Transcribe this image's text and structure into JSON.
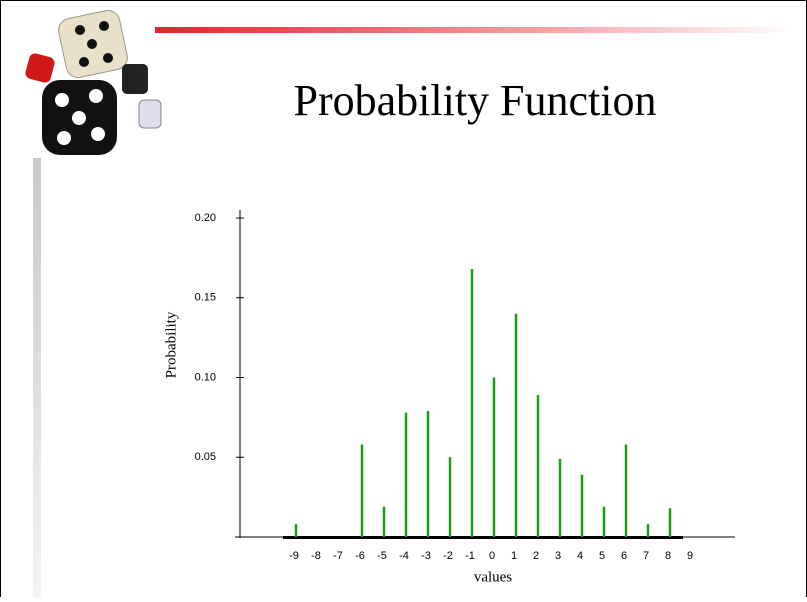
{
  "chart_data": {
    "type": "bar",
    "title": "Probability Function",
    "x_label": "values",
    "y_label": "Probability",
    "categories": [
      "-9",
      "-8",
      "-7",
      "-6",
      "-5",
      "-4",
      "-3",
      "-2",
      "-1",
      "0",
      "1",
      "2",
      "3",
      "4",
      "5",
      "6",
      "7",
      "8",
      "9"
    ],
    "values": [
      0.008,
      0,
      0,
      0.058,
      0.019,
      0.078,
      0.079,
      0.05,
      0.168,
      0.1,
      0.14,
      0.089,
      0.049,
      0.039,
      0.019,
      0.058,
      0.008,
      0.018,
      0
    ],
    "color": "#1a9c1a",
    "ylim": [
      0,
      0.2
    ],
    "yticks": [
      0.05,
      {
        "value": 0.1,
        "label": "0.10"
      },
      0.15,
      {
        "value": 0.2,
        "label": "0.20"
      }
    ]
  }
}
